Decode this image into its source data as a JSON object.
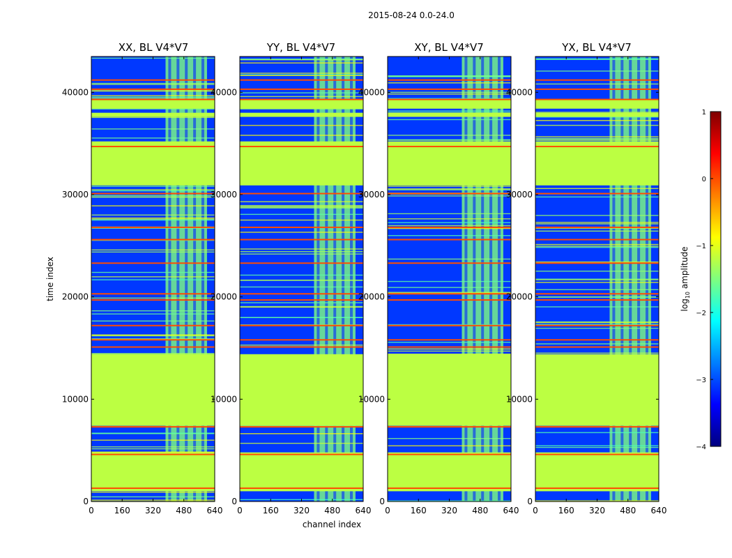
{
  "figure": {
    "suptitle": "2015-08-24 0.0-24.0"
  },
  "chart_data": [
    {
      "type": "heatmap",
      "title": "XX, BL V4*V7",
      "xlabel": "",
      "ylabel": "time index",
      "xlim": [
        0,
        640
      ],
      "ylim": [
        0,
        43500
      ],
      "xticks": [
        0,
        160,
        320,
        480,
        640
      ],
      "yticks": [
        0,
        10000,
        20000,
        30000,
        40000
      ]
    },
    {
      "type": "heatmap",
      "title": "YY, BL V4*V7",
      "xlabel": "channel index",
      "ylabel": "",
      "xlim": [
        0,
        640
      ],
      "ylim": [
        0,
        43500
      ],
      "xticks": [
        0,
        160,
        320,
        480,
        640
      ],
      "yticks": [
        0,
        10000,
        20000,
        30000,
        40000
      ]
    },
    {
      "type": "heatmap",
      "title": "XY, BL V4*V7",
      "xlabel": "",
      "ylabel": "",
      "xlim": [
        0,
        640
      ],
      "ylim": [
        0,
        43500
      ],
      "xticks": [
        0,
        160,
        320,
        480,
        640
      ],
      "yticks": [
        0,
        10000,
        20000,
        30000,
        40000
      ]
    },
    {
      "type": "heatmap",
      "title": "YX, BL V4*V7",
      "xlabel": "",
      "ylabel": "",
      "xlim": [
        0,
        640
      ],
      "ylim": [
        0,
        43500
      ],
      "xticks": [
        0,
        160,
        320,
        480,
        640
      ],
      "yticks": [
        0,
        10000,
        20000,
        30000,
        40000
      ]
    }
  ],
  "colorbar": {
    "label": "log10 amplitude",
    "label_main": "log",
    "label_sub": "10",
    "label_rest": " amplitude",
    "ticks": [
      1,
      0,
      -1,
      -2,
      -3,
      -4
    ],
    "range": [
      -4,
      1
    ],
    "colormap": "jet",
    "colors": [
      "#00007f",
      "#0000ff",
      "#007fff",
      "#00ffff",
      "#7fff7f",
      "#ffff00",
      "#ff7f00",
      "#ff0000",
      "#7f0000"
    ]
  },
  "features": {
    "flagged_time_ranges": [
      [
        1000,
        4800
      ],
      [
        7400,
        14400
      ],
      [
        30900,
        35200
      ],
      [
        37600,
        38000
      ],
      [
        38400,
        39300
      ]
    ],
    "flagged_level": -1.2,
    "background_level": -3.1,
    "rfi_channel_range": [
      385,
      600
    ],
    "rfi_level": -1.5,
    "hot_time_rows": [
      1300,
      4600,
      7300,
      15100,
      15800,
      17200,
      19700,
      20300,
      23300,
      25600,
      26800,
      30100,
      34700,
      39300,
      40300,
      41200
    ],
    "hot_row_level": 0.0
  }
}
